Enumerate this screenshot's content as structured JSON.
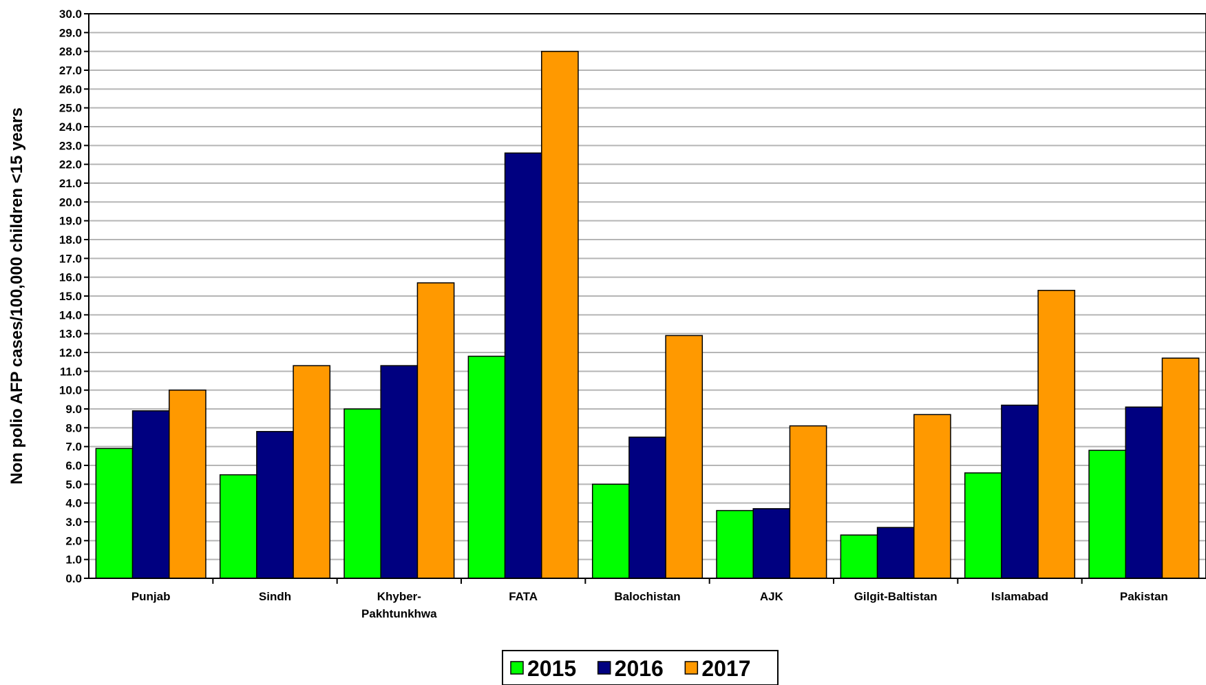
{
  "chart_data": {
    "type": "bar",
    "title": "",
    "xlabel": "",
    "ylabel": "Non polio AFP cases/100,000 children <15 years",
    "ylim": [
      0,
      30
    ],
    "ytick_step": 1,
    "yticks": [
      "0.0",
      "1.0",
      "2.0",
      "3.0",
      "4.0",
      "5.0",
      "6.0",
      "7.0",
      "8.0",
      "9.0",
      "10.0",
      "11.0",
      "12.0",
      "13.0",
      "14.0",
      "15.0",
      "16.0",
      "17.0",
      "18.0",
      "19.0",
      "20.0",
      "21.0",
      "22.0",
      "23.0",
      "24.0",
      "25.0",
      "26.0",
      "27.0",
      "28.0",
      "29.0",
      "30.0"
    ],
    "grid": true,
    "legend_position": "bottom-center",
    "categories": [
      [
        "Punjab"
      ],
      [
        "Sindh"
      ],
      [
        "Khyber-",
        "Pakhtunkhwa"
      ],
      [
        "FATA"
      ],
      [
        "Balochistan"
      ],
      [
        "AJK"
      ],
      [
        "Gilgit-Baltistan"
      ],
      [
        "Islamabad"
      ],
      [
        "Pakistan"
      ]
    ],
    "series": [
      {
        "name": "2015",
        "color": "#00ff00",
        "values": [
          6.9,
          5.5,
          9.0,
          11.8,
          5.0,
          3.6,
          2.3,
          5.6,
          6.8
        ]
      },
      {
        "name": "2016",
        "color": "#000080",
        "values": [
          8.9,
          7.8,
          11.3,
          22.6,
          7.5,
          3.7,
          2.7,
          9.2,
          9.1
        ]
      },
      {
        "name": "2017",
        "color": "#ff9900",
        "values": [
          10.0,
          11.3,
          15.7,
          28.0,
          12.9,
          8.1,
          8.7,
          15.3,
          11.7
        ]
      }
    ]
  }
}
